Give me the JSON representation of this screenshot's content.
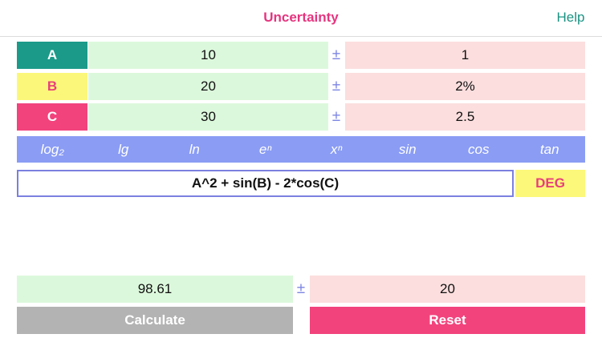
{
  "header": {
    "title": "Uncertainty",
    "help": "Help"
  },
  "variables": [
    {
      "label": "A",
      "value": "10",
      "plus_minus": "±",
      "uncertainty": "1"
    },
    {
      "label": "B",
      "value": "20",
      "plus_minus": "±",
      "uncertainty": "2%"
    },
    {
      "label": "C",
      "value": "30",
      "plus_minus": "±",
      "uncertainty": "2.5"
    }
  ],
  "functions": [
    "log₂",
    "lg",
    "ln",
    "eⁿ",
    "xⁿ",
    "sin",
    "cos",
    "tan"
  ],
  "expression": "A^2 + sin(B) - 2*cos(C)",
  "angle_mode": "DEG",
  "result": {
    "value": "98.61",
    "plus_minus": "±",
    "uncertainty": "20"
  },
  "buttons": {
    "calculate": "Calculate",
    "reset": "Reset"
  }
}
